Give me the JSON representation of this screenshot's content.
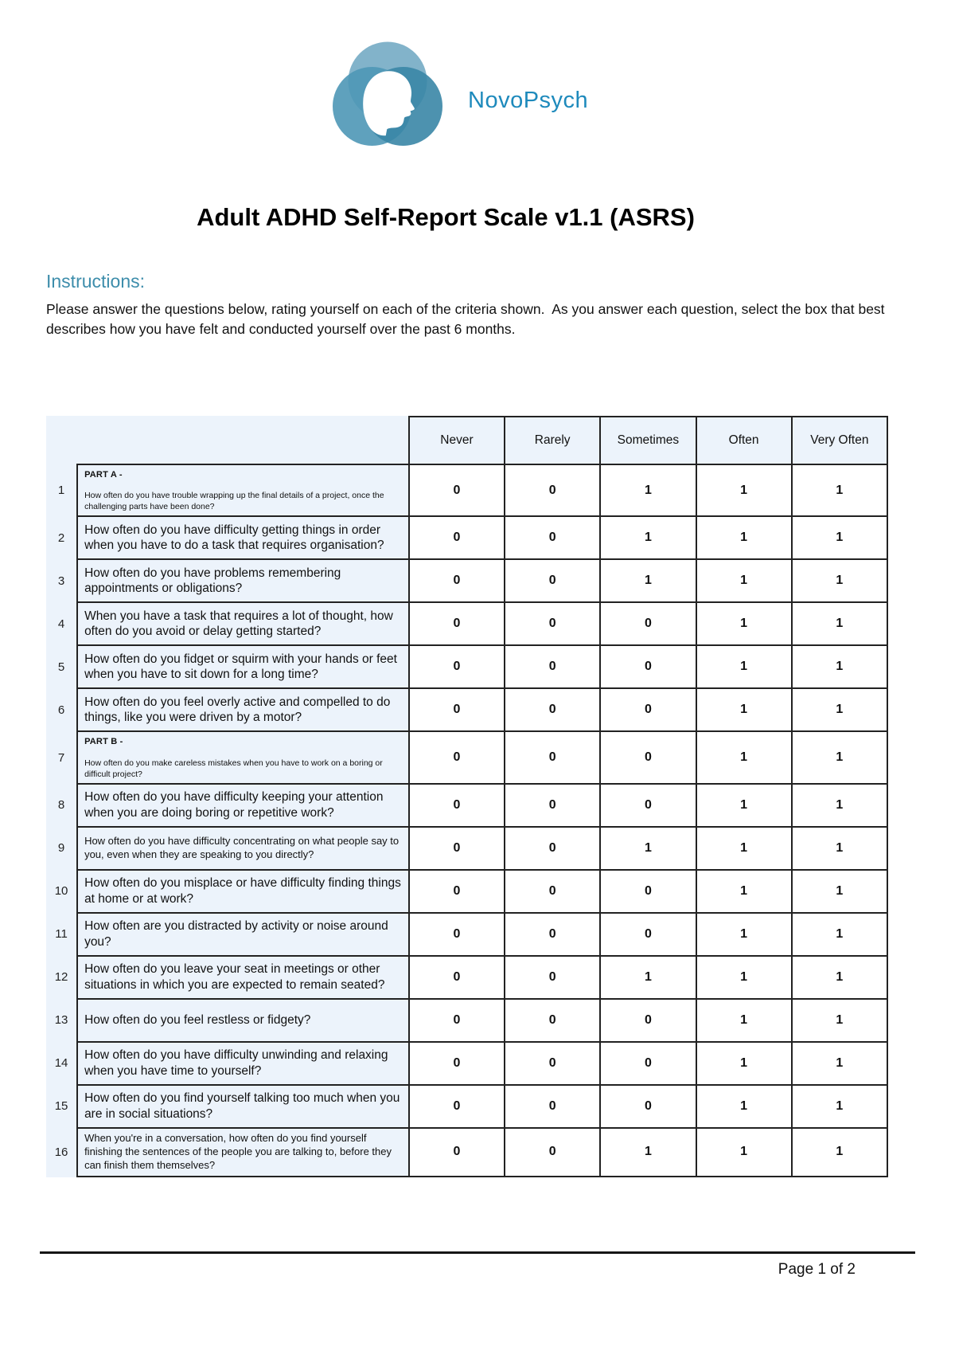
{
  "logo": {
    "brand": "NovoPsych"
  },
  "title": "Adult ADHD Self-Report Scale v1.1 (ASRS)",
  "instructions": {
    "heading": "Instructions:",
    "body": "Please answer the questions below, rating yourself on each of the criteria shown.  As you answer each question, select the box that best describes how you have felt and conducted yourself over the past 6 months."
  },
  "table": {
    "columns": [
      "Never",
      "Rarely",
      "Sometimes",
      "Often",
      "Very Often"
    ],
    "rows": [
      {
        "num": "1",
        "part": "PART A -",
        "question": "How often do you have trouble wrapping up the final details of a project, once the challenging parts have been done?",
        "values": [
          "0",
          "0",
          "1",
          "1",
          "1"
        ],
        "font": "tiny"
      },
      {
        "num": "2",
        "question": "How often do you have difficulty getting things in order when you have to do a task that requires organisation?",
        "values": [
          "0",
          "0",
          "1",
          "1",
          "1"
        ],
        "font": "normal"
      },
      {
        "num": "3",
        "question": "How often do you have problems remembering appointments or obligations?",
        "values": [
          "0",
          "0",
          "1",
          "1",
          "1"
        ],
        "font": "normal"
      },
      {
        "num": "4",
        "question": "When you have a task that requires a lot of thought, how often do you avoid or delay getting started?",
        "values": [
          "0",
          "0",
          "0",
          "1",
          "1"
        ],
        "font": "normal"
      },
      {
        "num": "5",
        "question": "How often do you fidget or squirm with your hands or feet when you have to sit down for a long time?",
        "values": [
          "0",
          "0",
          "0",
          "1",
          "1"
        ],
        "font": "normal"
      },
      {
        "num": "6",
        "question": "How often do you feel overly active and compelled to do things, like you were driven by a motor?",
        "values": [
          "0",
          "0",
          "0",
          "1",
          "1"
        ],
        "font": "normal"
      },
      {
        "num": "7",
        "part": "PART B -",
        "question": "How often do you make careless mistakes when you have to work on a boring or difficult project?",
        "values": [
          "0",
          "0",
          "0",
          "1",
          "1"
        ],
        "font": "tiny"
      },
      {
        "num": "8",
        "question": "How often do you have difficulty keeping your attention when you are doing boring or repetitive work?",
        "values": [
          "0",
          "0",
          "0",
          "1",
          "1"
        ],
        "font": "normal"
      },
      {
        "num": "9",
        "question": "How often do you have difficulty concentrating on what people say to you, even when they are speaking to you directly?",
        "values": [
          "0",
          "0",
          "1",
          "1",
          "1"
        ],
        "font": "small"
      },
      {
        "num": "10",
        "question": "How often do you misplace or have difficulty finding things at home or at work?",
        "values": [
          "0",
          "0",
          "0",
          "1",
          "1"
        ],
        "font": "normal"
      },
      {
        "num": "11",
        "question": "How often are you distracted by activity or noise around you?",
        "values": [
          "0",
          "0",
          "0",
          "1",
          "1"
        ],
        "font": "normal"
      },
      {
        "num": "12",
        "question": "How often do you leave your seat in meetings or other situations in which you are expected to remain seated?",
        "values": [
          "0",
          "0",
          "1",
          "1",
          "1"
        ],
        "font": "normal"
      },
      {
        "num": "13",
        "question": "How often do you feel restless or fidgety?",
        "values": [
          "0",
          "0",
          "0",
          "1",
          "1"
        ],
        "font": "normal"
      },
      {
        "num": "14",
        "question": "How often do you have difficulty unwinding and relaxing when you have time to yourself?",
        "values": [
          "0",
          "0",
          "0",
          "1",
          "1"
        ],
        "font": "normal"
      },
      {
        "num": "15",
        "question": "How often do you find yourself talking too much when you are in social situations?",
        "values": [
          "0",
          "0",
          "0",
          "1",
          "1"
        ],
        "font": "normal"
      },
      {
        "num": "16",
        "question": "When you're in a conversation, how often do you find yourself finishing the sentences of the people you are talking to, before they can finish them themselves?",
        "values": [
          "0",
          "0",
          "1",
          "1",
          "1"
        ],
        "font": "small"
      }
    ]
  },
  "footer": {
    "page": "Page 1 of 2"
  },
  "colors": {
    "brand_blue": "#1e8abc",
    "accent_teal": "#3d8dab",
    "table_bg": "#ecf3fb",
    "answer_cell_bg": "#ffffff",
    "border": "#222222",
    "logo_blue_dark": "#3a86a6",
    "logo_blue_mid": "#4e97b6",
    "logo_blue_light": "#74abc4"
  }
}
